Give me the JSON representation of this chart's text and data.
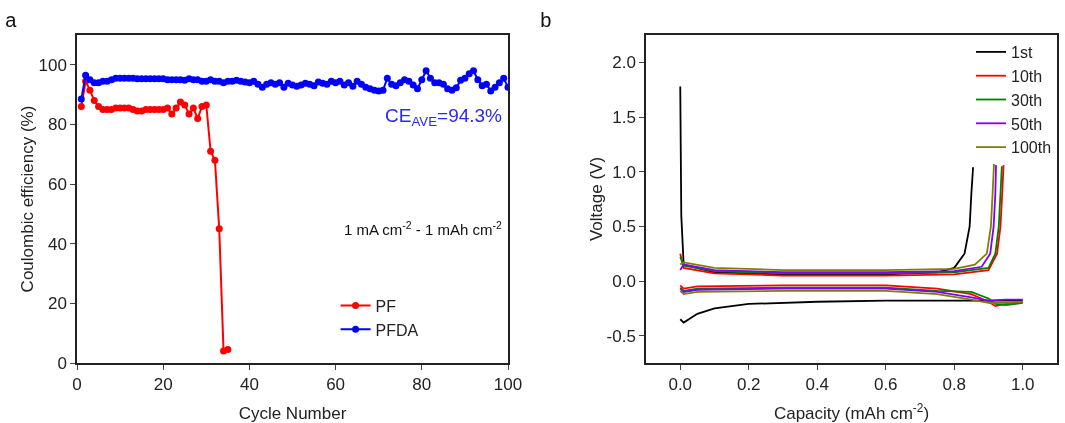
{
  "chart_data": [
    {
      "type": "line",
      "title": "a",
      "xlabel": "Cycle Number",
      "ylabel": "Coulombic efficiency (%)",
      "xlim": [
        0,
        100
      ],
      "xticks": [
        0,
        20,
        40,
        60,
        80,
        100
      ],
      "ylim": [
        0,
        110
      ],
      "yticks": [
        0,
        20,
        40,
        60,
        80,
        100
      ],
      "grid": false,
      "legend": "bottom right",
      "marker": "circle",
      "line_style": "solid",
      "annotations": [
        "CE$_{AVE}$=94.3%",
        "1 mA cm$^{-2}$ - 1 mAh cm$^{-2}$"
      ],
      "series": [
        {
          "name": "PF",
          "color": "#ff0000",
          "x": [
            1,
            2,
            3,
            4,
            5,
            6,
            7,
            8,
            9,
            10,
            11,
            12,
            13,
            14,
            15,
            16,
            17,
            18,
            19,
            20,
            21,
            22,
            23,
            24,
            25,
            26,
            27,
            28,
            29,
            30,
            31,
            32,
            33,
            34,
            35
          ],
          "values": [
            86,
            94.5,
            91.5,
            88,
            86,
            85,
            85,
            85,
            85.5,
            85.5,
            85.5,
            85.5,
            85,
            84.5,
            84.5,
            85,
            85,
            85,
            85,
            85,
            85.5,
            83.5,
            85.5,
            87.5,
            86.5,
            83.5,
            85.5,
            82,
            86,
            86.5,
            71,
            68,
            45,
            4,
            4.5
          ]
        },
        {
          "name": "PFDA",
          "color": "#0000ff",
          "x": [
            1,
            2,
            3,
            4,
            5,
            6,
            7,
            8,
            9,
            10,
            11,
            12,
            13,
            14,
            15,
            16,
            17,
            18,
            19,
            20,
            21,
            22,
            23,
            24,
            25,
            26,
            27,
            28,
            29,
            30,
            31,
            32,
            33,
            34,
            35,
            36,
            37,
            38,
            39,
            40,
            41,
            42,
            43,
            44,
            45,
            46,
            47,
            48,
            49,
            50,
            51,
            52,
            53,
            54,
            55,
            56,
            57,
            58,
            59,
            60,
            61,
            62,
            63,
            64,
            65,
            66,
            67,
            68,
            69,
            70,
            71,
            72,
            73,
            74,
            75,
            76,
            77,
            78,
            79,
            80,
            81,
            82,
            83,
            84,
            85,
            86,
            87,
            88,
            89,
            90,
            91,
            92,
            93,
            94,
            95,
            96,
            97,
            98,
            99,
            100
          ],
          "values": [
            88.5,
            96.5,
            95,
            94,
            94,
            94.5,
            94.5,
            95,
            95.5,
            95.5,
            95.5,
            95.5,
            95.5,
            95.3,
            95.3,
            95.3,
            95.3,
            95.3,
            95.3,
            95.3,
            95,
            95,
            95,
            95,
            94.8,
            95.3,
            95,
            95,
            94.5,
            94.5,
            95,
            94.5,
            94.5,
            94,
            94.5,
            94.5,
            94.8,
            94.5,
            94.2,
            94,
            94.5,
            93.5,
            92.5,
            93.5,
            94,
            93.5,
            94,
            92.5,
            93.8,
            93.2,
            92.8,
            93.2,
            93.8,
            93.5,
            93,
            94.2,
            93.8,
            93.5,
            94.5,
            94,
            94.5,
            93.2,
            94,
            92.8,
            94.5,
            93.5,
            92.5,
            92,
            91.5,
            91.2,
            91.5,
            95.5,
            93.5,
            93,
            94,
            95,
            94.5,
            93.2,
            92,
            95,
            98,
            95.5,
            94,
            94,
            93.5,
            92,
            91.5,
            92.3,
            94.8,
            95.5,
            97,
            98,
            95,
            93,
            93.5,
            91.2,
            92.5,
            94,
            95.5,
            92.5
          ]
        }
      ]
    },
    {
      "type": "line",
      "title": "b",
      "xlabel": "Capacity (mAh cm$^{-2}$)",
      "ylabel": "Voltage (V)",
      "xlim": [
        -0.1,
        1.1
      ],
      "xticks": [
        {
          "value": 0,
          "label": "0.0"
        },
        0.2,
        0.4,
        0.6,
        0.8,
        {
          "value": 1,
          "label": "1.0"
        }
      ],
      "ylim": [
        -0.75,
        2.25
      ],
      "yticks": [
        -0.5,
        {
          "value": 0,
          "label": "0.0"
        },
        0.5,
        {
          "value": 1,
          "label": "1.0"
        },
        1.5,
        {
          "value": 2,
          "label": "2.0"
        }
      ],
      "grid": false,
      "legend": "top right",
      "marker": "none",
      "line_style": "solid",
      "series": [
        {
          "name": "1st",
          "color": "#000000",
          "x": [
            0,
            0.01,
            0.05,
            0.1,
            0.2,
            0.4,
            0.6,
            0.8,
            0.9,
            1.0,
            null,
            0,
            0.003,
            0.01,
            0.1,
            0.3,
            0.6,
            0.75,
            0.8,
            0.83,
            0.845,
            0.85,
            0.855
          ],
          "values": [
            -0.35,
            -0.38,
            -0.3,
            -0.25,
            -0.21,
            -0.19,
            -0.18,
            -0.18,
            -0.18,
            -0.18,
            null,
            1.78,
            0.6,
            0.15,
            0.08,
            0.06,
            0.06,
            0.08,
            0.12,
            0.25,
            0.5,
            0.8,
            1.04
          ]
        },
        {
          "name": "10th",
          "color": "#ff0000",
          "x": [
            0,
            0.01,
            0.05,
            0.3,
            0.6,
            0.75,
            0.85,
            0.9,
            0.92,
            0.95,
            1.0,
            null,
            0,
            0.01,
            0.1,
            0.3,
            0.6,
            0.8,
            0.9,
            0.925,
            0.935,
            0.94,
            0.944
          ],
          "values": [
            -0.04,
            -0.07,
            -0.05,
            -0.04,
            -0.04,
            -0.07,
            -0.12,
            -0.19,
            -0.23,
            -0.21,
            -0.19,
            null,
            0.25,
            0.12,
            0.07,
            0.05,
            0.05,
            0.06,
            0.1,
            0.25,
            0.5,
            0.8,
            1.06
          ]
        },
        {
          "name": "30th",
          "color": "#008000",
          "x": [
            0,
            0.01,
            0.05,
            0.3,
            0.6,
            0.75,
            0.85,
            0.9,
            0.92,
            0.95,
            1.0,
            null,
            0,
            0.01,
            0.1,
            0.3,
            0.6,
            0.8,
            0.9,
            0.92,
            0.93,
            0.935,
            0.939
          ],
          "values": [
            -0.06,
            -0.09,
            -0.07,
            -0.06,
            -0.06,
            -0.09,
            -0.1,
            -0.16,
            -0.21,
            -0.22,
            -0.2,
            null,
            0.22,
            0.14,
            0.09,
            0.07,
            0.07,
            0.08,
            0.12,
            0.25,
            0.5,
            0.8,
            1.05
          ]
        },
        {
          "name": "50th",
          "color": "#8000ff",
          "x": [
            0,
            0.01,
            0.05,
            0.3,
            0.6,
            0.75,
            0.85,
            0.9,
            0.95,
            1.0,
            null,
            0,
            0.01,
            0.1,
            0.3,
            0.6,
            0.8,
            0.88,
            0.905,
            0.915,
            0.92,
            0.922
          ],
          "values": [
            -0.07,
            -0.1,
            -0.08,
            -0.07,
            -0.07,
            -0.1,
            -0.15,
            -0.18,
            -0.17,
            -0.17,
            null,
            0.1,
            0.15,
            0.1,
            0.08,
            0.08,
            0.09,
            0.13,
            0.25,
            0.5,
            0.8,
            1.06
          ]
        },
        {
          "name": "100th",
          "color": "#808000",
          "x": [
            0,
            0.01,
            0.05,
            0.3,
            0.6,
            0.75,
            0.85,
            0.9,
            0.95,
            1.0,
            null,
            0,
            0.01,
            0.1,
            0.3,
            0.6,
            0.8,
            0.86,
            0.895,
            0.907,
            0.912,
            0.916
          ],
          "values": [
            -0.09,
            -0.12,
            -0.1,
            -0.09,
            -0.09,
            -0.12,
            -0.17,
            -0.2,
            -0.2,
            -0.19,
            null,
            0.15,
            0.17,
            0.12,
            0.1,
            0.1,
            0.11,
            0.15,
            0.25,
            0.5,
            0.8,
            1.07
          ]
        }
      ]
    }
  ]
}
